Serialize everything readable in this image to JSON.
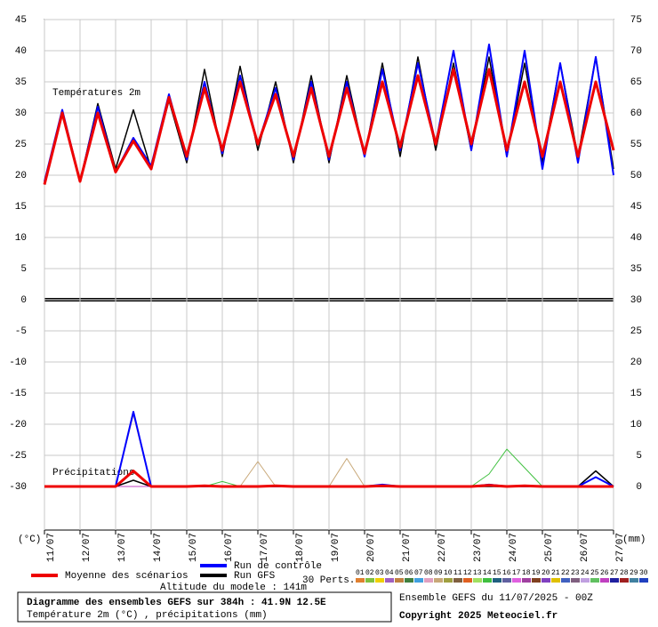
{
  "chart_data": {
    "type": "line",
    "temp_label": "Températures 2m",
    "precip_label": "Précipitations",
    "y_unit": "(°C)",
    "y2_unit": "(mm)",
    "x": [
      0,
      12,
      24,
      36,
      48,
      60,
      72,
      84,
      96,
      108,
      120,
      132,
      144,
      156,
      168,
      180,
      192,
      204,
      216,
      228,
      240,
      252,
      264,
      276,
      288,
      300,
      312,
      324,
      336,
      348,
      360,
      372,
      384
    ],
    "xlim": [
      0,
      384
    ],
    "xticks": [
      {
        "value": 0,
        "label": "11/07"
      },
      {
        "value": 24,
        "label": "12/07"
      },
      {
        "value": 48,
        "label": "13/07"
      },
      {
        "value": 72,
        "label": "14/07"
      },
      {
        "value": 96,
        "label": "15/07"
      },
      {
        "value": 120,
        "label": "16/07"
      },
      {
        "value": 144,
        "label": "17/07"
      },
      {
        "value": 168,
        "label": "18/07"
      },
      {
        "value": 192,
        "label": "19/07"
      },
      {
        "value": 216,
        "label": "20/07"
      },
      {
        "value": 240,
        "label": "21/07"
      },
      {
        "value": 264,
        "label": "22/07"
      },
      {
        "value": 288,
        "label": "23/07"
      },
      {
        "value": 312,
        "label": "24/07"
      },
      {
        "value": 336,
        "label": "25/07"
      },
      {
        "value": 360,
        "label": "26/07"
      },
      {
        "value": 384,
        "label": "27/07"
      }
    ],
    "ylim": [
      -37,
      45
    ],
    "yticks": [
      -30,
      -25,
      -20,
      -15,
      -10,
      -5,
      0,
      5,
      10,
      15,
      20,
      25,
      30,
      35,
      40,
      45
    ],
    "y2lim": [
      -7,
      75
    ],
    "y2ticks": [
      0,
      5,
      10,
      15,
      20,
      25,
      30,
      35,
      40,
      45,
      50,
      55,
      60,
      65,
      70,
      75
    ],
    "grid": true,
    "series": [
      {
        "name": "Run GFS",
        "color": "#000000",
        "values": [
          18.5,
          30.5,
          19,
          31.5,
          21,
          30.5,
          21,
          32,
          22,
          37,
          23,
          37.5,
          24,
          35,
          22,
          36,
          22,
          36,
          23,
          38,
          23,
          39,
          24,
          38,
          24,
          39,
          23,
          38,
          22,
          38,
          23,
          39,
          21
        ],
        "precip": [
          0,
          0,
          0,
          0,
          0,
          1,
          0,
          0,
          0,
          0,
          0,
          0,
          0,
          0,
          0,
          0,
          0,
          0,
          0,
          0,
          0,
          0,
          0,
          0,
          0,
          0,
          0,
          0,
          0,
          0,
          0,
          2.5,
          0
        ]
      },
      {
        "name": "Run de contrôle",
        "color": "#0000ff",
        "values": [
          19,
          30.5,
          19,
          31,
          20.5,
          26,
          21.5,
          33,
          22.5,
          35,
          23.5,
          36,
          25,
          34,
          22.5,
          35,
          22.5,
          35,
          23,
          37,
          24,
          38,
          25,
          40,
          24,
          41,
          23,
          40,
          21,
          38,
          22,
          39,
          20
        ],
        "precip": [
          0,
          0,
          0,
          0,
          0,
          12,
          0,
          0,
          0,
          0,
          0,
          0,
          0,
          0,
          0,
          0,
          0,
          0,
          0,
          0.3,
          0,
          0,
          0,
          0,
          0,
          0.3,
          0,
          0,
          0,
          0,
          0,
          1.5,
          0
        ]
      },
      {
        "name": "Moyenne des scénarios",
        "color": "#ee0000",
        "values": [
          18.5,
          30,
          19,
          30,
          20.5,
          25.5,
          21,
          32.5,
          23,
          34,
          24,
          35,
          25,
          33,
          23,
          34,
          23,
          34,
          23.5,
          35,
          24.5,
          36,
          25,
          37,
          25,
          37,
          24,
          35,
          23,
          35,
          23,
          35,
          24
        ],
        "precip": [
          0,
          0,
          0,
          0,
          0,
          2.5,
          0,
          0,
          0,
          0.1,
          0,
          0,
          0,
          0.1,
          0,
          0,
          0,
          0,
          0,
          0.1,
          0,
          0,
          0,
          0,
          0,
          0.2,
          0,
          0.1,
          0,
          0,
          0,
          0,
          0
        ]
      }
    ],
    "perturbations": {
      "label": "30 Perts.",
      "members": [
        {
          "name": "01",
          "color": "#e08030"
        },
        {
          "name": "02",
          "color": "#80c040"
        },
        {
          "name": "03",
          "color": "#f0d000"
        },
        {
          "name": "04",
          "color": "#a060c0"
        },
        {
          "name": "05",
          "color": "#c08040"
        },
        {
          "name": "06",
          "color": "#408040"
        },
        {
          "name": "07",
          "color": "#40a0e0"
        },
        {
          "name": "08",
          "color": "#e0a0c0"
        },
        {
          "name": "09",
          "color": "#c8a878",
          "precip": [
            0,
            0,
            0,
            0,
            0,
            11.5,
            0,
            0,
            0,
            0,
            0,
            0,
            4,
            0,
            0,
            0,
            0,
            4.5,
            0,
            0,
            0,
            0,
            0,
            0,
            0,
            0,
            0,
            0,
            0,
            0,
            0,
            0,
            0
          ]
        },
        {
          "name": "10",
          "color": "#a0a040"
        },
        {
          "name": "11",
          "color": "#806040"
        },
        {
          "name": "12",
          "color": "#e06020"
        },
        {
          "name": "13",
          "color": "#a0e060"
        },
        {
          "name": "14",
          "color": "#40c040",
          "precip": [
            0,
            0,
            0,
            0,
            0,
            0,
            0,
            0,
            0,
            0,
            0.8,
            0,
            0,
            0,
            0,
            0,
            0,
            0,
            0,
            0,
            0,
            0,
            0,
            0,
            0,
            2,
            6,
            3,
            0,
            0,
            0,
            0,
            0
          ]
        },
        {
          "name": "15",
          "color": "#206080"
        },
        {
          "name": "16",
          "color": "#6060a0"
        },
        {
          "name": "17",
          "color": "#e060e0"
        },
        {
          "name": "18",
          "color": "#a040a0"
        },
        {
          "name": "19",
          "color": "#804020"
        },
        {
          "name": "20",
          "color": "#8040c0"
        },
        {
          "name": "21",
          "color": "#e0c000"
        },
        {
          "name": "22",
          "color": "#4060c0"
        },
        {
          "name": "23",
          "color": "#806080"
        },
        {
          "name": "24",
          "color": "#c0a0e0"
        },
        {
          "name": "25",
          "color": "#60c060"
        },
        {
          "name": "26",
          "color": "#c040c0",
          "precip": [
            0,
            0,
            0,
            0,
            0,
            0,
            0,
            0,
            0,
            0,
            0,
            0,
            0,
            0,
            0,
            0,
            0,
            0,
            0,
            0,
            0,
            0,
            0,
            0,
            0,
            0,
            0,
            0,
            0,
            0,
            0,
            2.5,
            0
          ]
        },
        {
          "name": "27",
          "color": "#2020a0"
        },
        {
          "name": "28",
          "color": "#a02020"
        },
        {
          "name": "29",
          "color": "#4080a0"
        },
        {
          "name": "30",
          "color": "#2040c0"
        }
      ]
    },
    "altitude": "Altitude du modele : 141m"
  },
  "footer": {
    "title": "Diagramme des ensembles GEFS sur 384h : 41.9N 12.5E",
    "subtitle": "Température 2m (°C) , précipitations (mm)",
    "run": "Ensemble GEFS du 11/07/2025 - 00Z",
    "copyright": "Copyright 2025 Meteociel.fr"
  }
}
